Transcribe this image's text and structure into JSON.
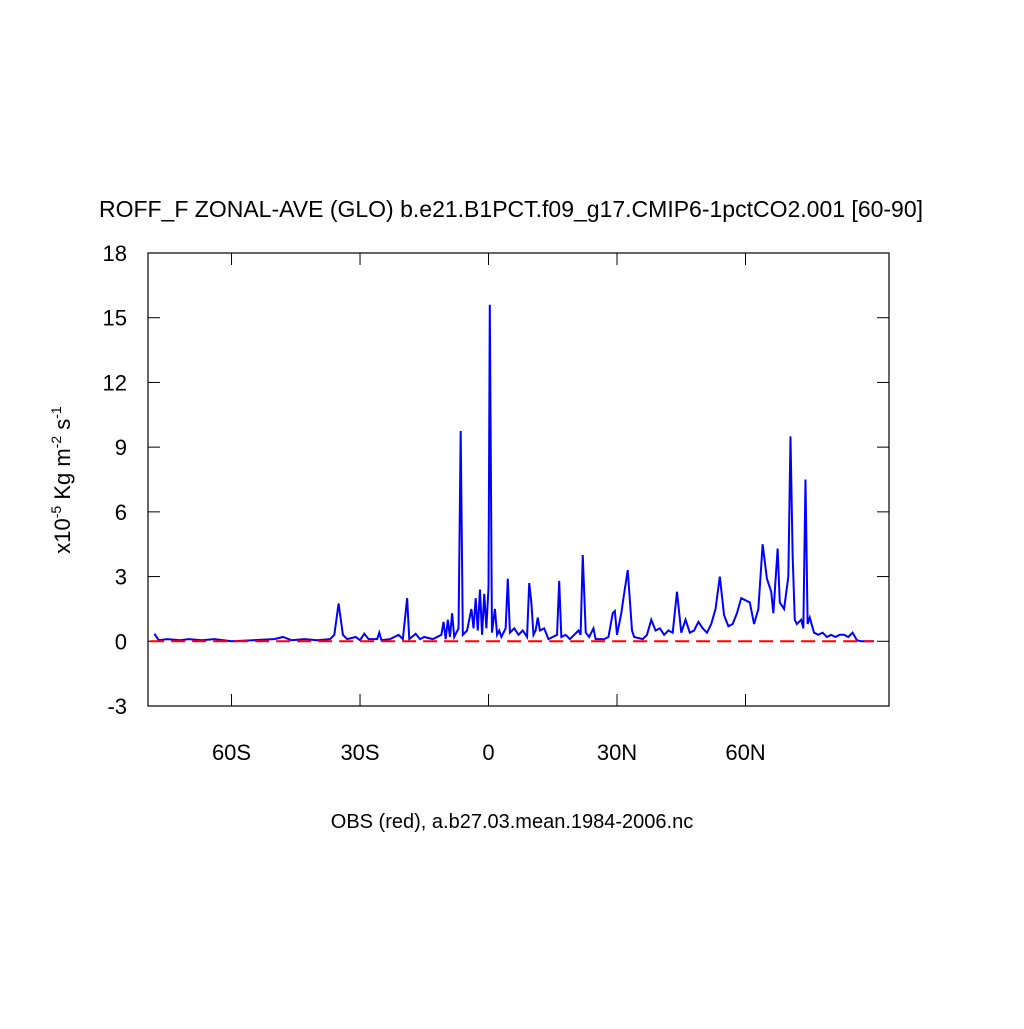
{
  "chart_data": {
    "type": "line",
    "title": "ROFF_F ZONAL-AVE (GLO) b.e21.B1PCT.f09_g17.CMIP6-1pctCO2.001 [60-90]",
    "subtitle": "OBS (red), a.b27.03.mean.1984-2006.nc",
    "ylabel": [
      "x10",
      "-5",
      " Kg m",
      "-2",
      " s",
      "-1"
    ],
    "xlim": [
      -79.5,
      93.5
    ],
    "xticks": [
      {
        "value": -60,
        "label": "60S"
      },
      {
        "value": -30,
        "label": "30S"
      },
      0,
      {
        "value": 30,
        "label": "30N"
      },
      {
        "value": 60,
        "label": "60N"
      }
    ],
    "ylim": [
      -3,
      18
    ],
    "yticks": [
      -3,
      0,
      3,
      6,
      9,
      12,
      15,
      18
    ],
    "series": [
      {
        "color": "#0000ff",
        "dash": false,
        "x": [
          -78,
          -77,
          -75,
          -72,
          -70,
          -67,
          -64,
          -60,
          -55,
          -50,
          -48,
          -46,
          -43,
          -40,
          -37,
          -36,
          -35,
          -34,
          -33,
          -31,
          -30,
          -29,
          -28,
          -26,
          -25.5,
          -25,
          -23,
          -21,
          -20,
          -19,
          -18.5,
          -17,
          -16,
          -15,
          -13,
          -11,
          -10.5,
          -10,
          -9.5,
          -9,
          -8.5,
          -8,
          -7,
          -6.5,
          -6,
          -5,
          -4,
          -3.5,
          -3,
          -2.5,
          -2,
          -1.5,
          -1,
          -0.5,
          0,
          0.3,
          0.8,
          1.5,
          2,
          2.5,
          3,
          4,
          4.5,
          5,
          6,
          7,
          8,
          9,
          9.5,
          10,
          10.5,
          11,
          11.5,
          12,
          13,
          14,
          15,
          16,
          16.5,
          17,
          18,
          19,
          20,
          21,
          21.5,
          22,
          22.7,
          23.5,
          24.5,
          25,
          27,
          28,
          29,
          29.5,
          30,
          31,
          31.5,
          32.5,
          33.5,
          34,
          36,
          37,
          38,
          39,
          40,
          41,
          42,
          43,
          44,
          45,
          46,
          47,
          48,
          49,
          50,
          51,
          52,
          53,
          54,
          55,
          56,
          57,
          58,
          59,
          60,
          61,
          62,
          63,
          64,
          65,
          66,
          66.5,
          67.5,
          68,
          69,
          70,
          70.5,
          71,
          71.5,
          72,
          73,
          73.5,
          74,
          74.5,
          75,
          76,
          77,
          78,
          79,
          80,
          81,
          82,
          83,
          84,
          85,
          86,
          87,
          88,
          90
        ],
        "values": [
          0.35,
          0.05,
          0.1,
          0.05,
          0.1,
          0.05,
          0.1,
          0,
          0.05,
          0.1,
          0.2,
          0.05,
          0.1,
          0.05,
          0.1,
          0.3,
          1.75,
          0.3,
          0.1,
          0.2,
          0.05,
          0.35,
          0.1,
          0.1,
          0.4,
          0.05,
          0.1,
          0.3,
          0.1,
          2.0,
          0.1,
          0.35,
          0.1,
          0.2,
          0.1,
          0.3,
          0.9,
          0.1,
          1.0,
          0.2,
          1.3,
          0.2,
          0.6,
          9.75,
          0.3,
          0.5,
          1.5,
          0.6,
          2.0,
          0.5,
          2.4,
          0.3,
          2.2,
          0.6,
          2.5,
          15.6,
          0.4,
          1.5,
          0.3,
          0.5,
          0.2,
          0.6,
          2.9,
          0.4,
          0.6,
          0.3,
          0.5,
          0.2,
          2.7,
          1.8,
          0.3,
          0.5,
          1.1,
          0.5,
          0.6,
          0.1,
          0.2,
          0.3,
          2.8,
          0.2,
          0.3,
          0.1,
          0.3,
          0.5,
          0.3,
          4.0,
          0.4,
          0.2,
          0.6,
          0.1,
          0.1,
          0.2,
          1.3,
          1.4,
          0.3,
          1.3,
          2.0,
          3.3,
          0.5,
          0.2,
          0.1,
          0.3,
          1.0,
          0.5,
          0.6,
          0.3,
          0.5,
          0.4,
          2.3,
          0.4,
          1.0,
          0.4,
          0.5,
          0.9,
          0.6,
          0.4,
          0.8,
          1.5,
          3.0,
          1.2,
          0.7,
          0.8,
          1.3,
          2.0,
          1.9,
          1.8,
          0.8,
          1.5,
          4.5,
          2.9,
          2.3,
          1.3,
          4.3,
          1.8,
          1.5,
          3.0,
          9.5,
          4.0,
          1.0,
          0.8,
          1.0,
          0.6,
          7.5,
          0.8,
          1.1,
          0.4,
          0.3,
          0.4,
          0.2,
          0.3,
          0.2,
          0.3,
          0.3,
          0.2,
          0.4,
          0.05,
          0,
          0,
          0
        ]
      },
      {
        "color": "#ff0000",
        "dash": true,
        "x": [
          -79,
          90
        ],
        "values": [
          0,
          0
        ]
      }
    ]
  }
}
